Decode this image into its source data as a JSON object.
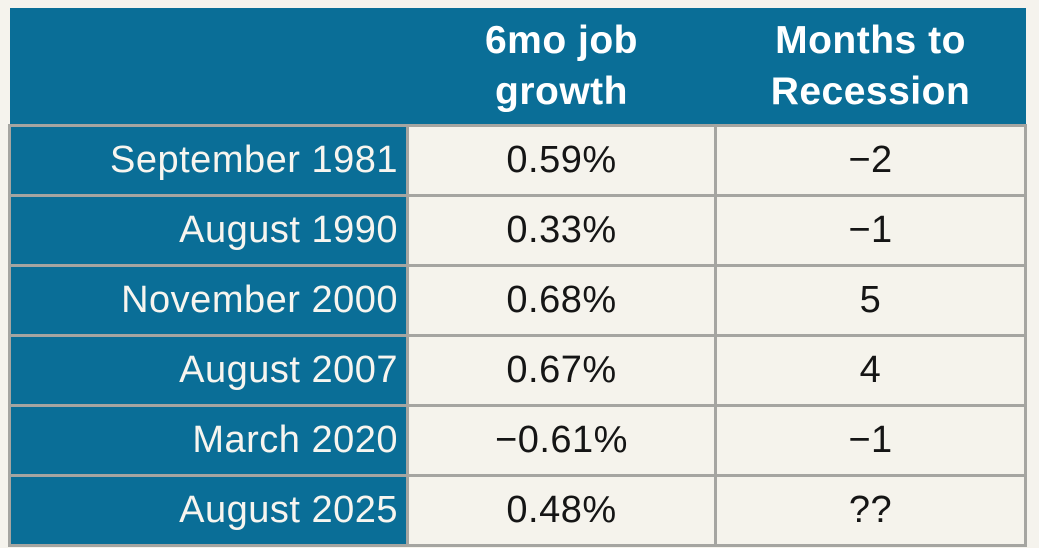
{
  "theme": {
    "accent_teal": "#0A6E97",
    "page_background": "#F5F3ED",
    "cell_background": "#F5F3EC",
    "grid_border_gray": "#A5A5A1",
    "header_text_color": "#FFFFFF",
    "value_text_color": "#151515"
  },
  "chart_data": {
    "type": "table",
    "title": "",
    "columns": [
      "",
      "6mo job growth",
      "Months to Recession"
    ],
    "rows": [
      [
        "September 1981",
        "0.59%",
        "−2"
      ],
      [
        "August 1990",
        "0.33%",
        "−1"
      ],
      [
        "November 2000",
        "0.68%",
        "5"
      ],
      [
        "August 2007",
        "0.67%",
        "4"
      ],
      [
        "March 2020",
        "−0.61%",
        "−1"
      ],
      [
        "August 2025",
        "0.48%",
        "??"
      ]
    ],
    "numeric": {
      "job_growth_6mo_pct": [
        0.59,
        0.33,
        0.68,
        0.67,
        -0.61,
        0.48
      ],
      "months_to_recession": [
        -2,
        -1,
        5,
        4,
        -1,
        null
      ]
    },
    "layout_hints": {
      "header_background": "teal",
      "period_column_background": "teal",
      "value_columns_background": "off-white",
      "period_alignment": "right",
      "value_alignment": "center"
    }
  }
}
